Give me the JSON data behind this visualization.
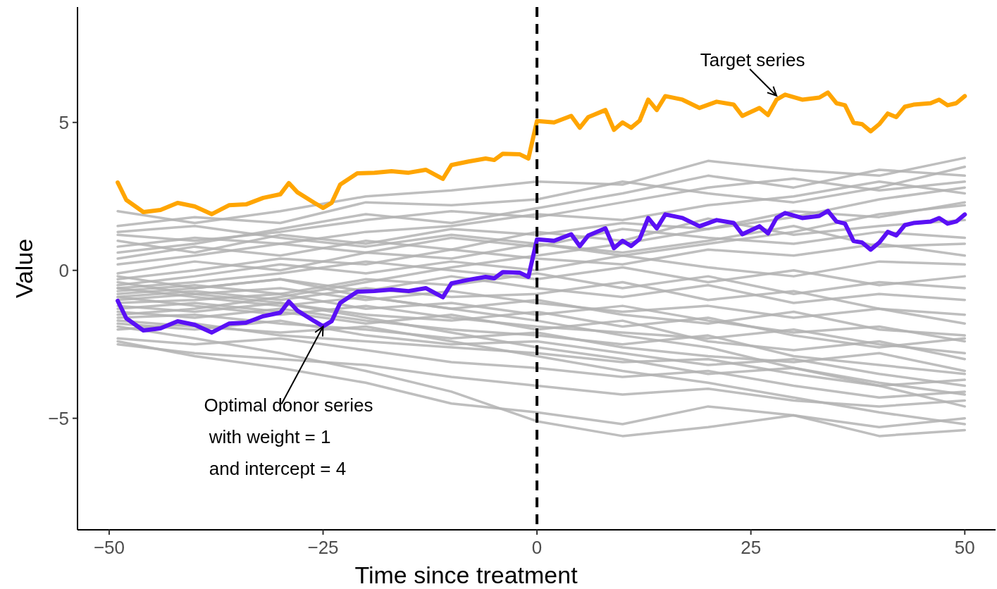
{
  "chart_data": {
    "type": "line",
    "xlabel": "Time since treatment",
    "ylabel": "Value",
    "x": [
      -49,
      -40,
      -30,
      -20,
      -10,
      0,
      10,
      20,
      30,
      40,
      50
    ],
    "xlim": [
      -53.7,
      53.6
    ],
    "ylim": [
      -8.77,
      8.9
    ],
    "xticks": [
      {
        "value": -50,
        "label": "−50"
      },
      {
        "value": -25,
        "label": "−25"
      },
      0,
      25,
      50
    ],
    "yticks": [
      {
        "value": -5,
        "label": "−5"
      },
      0,
      5
    ],
    "ref_lines": [
      {
        "axis": "x",
        "value": 0,
        "color": "#000000",
        "line_style": "dashed"
      }
    ],
    "annotations": [
      {
        "text": "Target series",
        "x": 28,
        "y": 5.9
      },
      {
        "text": "Optimal donor series\n with weight = 1\n and intercept = 4",
        "x": -25,
        "y": -1.9
      }
    ],
    "series": [
      {
        "color": "#b3b3b3",
        "values": [
          2.0,
          1.6,
          2.0,
          2.5,
          2.7,
          3.0,
          2.9,
          3.7,
          3.4,
          3.2,
          3.8
        ]
      },
      {
        "color": "#b3b3b3",
        "values": [
          1.5,
          1.8,
          1.6,
          2.3,
          2.2,
          2.4,
          3.0,
          2.6,
          2.3,
          2.8,
          3.5
        ]
      },
      {
        "color": "#b3b3b3",
        "values": [
          1.2,
          1.0,
          1.3,
          1.7,
          2.0,
          1.8,
          2.3,
          2.8,
          3.1,
          2.7,
          3.0
        ]
      },
      {
        "color": "#b3b3b3",
        "values": [
          0.8,
          1.1,
          0.9,
          1.3,
          1.5,
          1.9,
          1.7,
          2.2,
          2.5,
          3.0,
          2.6
        ]
      },
      {
        "color": "#b3b3b3",
        "values": [
          1.0,
          0.6,
          1.2,
          0.9,
          1.4,
          1.2,
          1.6,
          1.4,
          2.0,
          1.8,
          2.3
        ]
      },
      {
        "color": "#b3b3b3",
        "values": [
          0.4,
          0.8,
          0.5,
          1.0,
          0.7,
          1.3,
          1.0,
          1.75,
          1.2,
          1.5,
          1.7
        ]
      },
      {
        "color": "#b3b3b3",
        "values": [
          0.2,
          0.5,
          0.9,
          0.6,
          1.1,
          0.8,
          1.4,
          1.1,
          0.9,
          1.3,
          1.1
        ]
      },
      {
        "color": "#b3b3b3",
        "values": [
          -0.1,
          0.3,
          0.0,
          0.6,
          0.4,
          0.9,
          0.6,
          1.0,
          1.5,
          0.8,
          0.9
        ]
      },
      {
        "color": "#b3b3b3",
        "values": [
          -0.3,
          0.0,
          0.4,
          0.2,
          0.7,
          0.4,
          0.2,
          0.7,
          0.5,
          0.9,
          0.5
        ]
      },
      {
        "color": "#b3b3b3",
        "values": [
          -0.5,
          -0.2,
          0.2,
          -0.1,
          0.3,
          0.0,
          0.5,
          0.1,
          -0.2,
          0.3,
          0.2
        ]
      },
      {
        "color": "#b3b3b3",
        "values": [
          -0.6,
          -0.4,
          -0.1,
          0.3,
          0.0,
          -0.3,
          0.1,
          -0.4,
          0.0,
          -0.5,
          -0.2
        ]
      },
      {
        "color": "#b3b3b3",
        "values": [
          -0.7,
          -0.5,
          -0.8,
          -0.3,
          -0.5,
          -0.1,
          -0.6,
          -0.2,
          -0.8,
          -0.4,
          -0.6
        ]
      },
      {
        "color": "#b3b3b3",
        "values": [
          -0.8,
          -0.6,
          -0.3,
          -0.7,
          -0.2,
          -0.6,
          -0.9,
          -0.5,
          -1.1,
          -0.8,
          -1.0
        ]
      },
      {
        "color": "#b3b3b3",
        "values": [
          -0.9,
          -0.7,
          -1.0,
          -0.6,
          -0.9,
          -0.8,
          -0.4,
          -1.0,
          -0.7,
          -1.3,
          -1.5
        ]
      },
      {
        "color": "#b3b3b3",
        "values": [
          -1.0,
          -0.8,
          -0.6,
          -1.0,
          -0.7,
          -1.1,
          -1.4,
          -1.2,
          -1.6,
          -1.3,
          -1.8
        ]
      },
      {
        "color": "#b3b3b3",
        "values": [
          -0.6,
          -0.9,
          -1.2,
          -0.9,
          -1.3,
          -1.0,
          -1.5,
          -1.8,
          -1.4,
          -2.0,
          -2.2
        ]
      },
      {
        "color": "#b3b3b3",
        "values": [
          -1.1,
          -1.0,
          -0.8,
          -1.3,
          -1.1,
          -1.5,
          -1.2,
          -1.7,
          -2.1,
          -1.9,
          -2.4
        ]
      },
      {
        "color": "#b3b3b3",
        "values": [
          -1.2,
          -1.4,
          -1.1,
          -1.5,
          -1.7,
          -1.4,
          -1.9,
          -1.6,
          -2.2,
          -2.6,
          -2.3
        ]
      },
      {
        "color": "#b3b3b3",
        "values": [
          -0.9,
          -1.2,
          -1.5,
          -1.2,
          -1.6,
          -1.9,
          -2.1,
          -2.3,
          -2.0,
          -2.5,
          -2.8
        ]
      },
      {
        "color": "#b3b3b3",
        "values": [
          -1.3,
          -1.1,
          -1.4,
          -1.8,
          -1.5,
          -2.0,
          -1.7,
          -2.4,
          -2.7,
          -2.4,
          -3.0
        ]
      },
      {
        "color": "#b3b3b3",
        "values": [
          -1.4,
          -1.6,
          -1.3,
          -1.7,
          -2.0,
          -2.2,
          -2.5,
          -2.2,
          -2.9,
          -3.2,
          -3.5
        ]
      },
      {
        "color": "#b3b3b3",
        "values": [
          -1.6,
          -1.5,
          -1.8,
          -2.0,
          -2.3,
          -2.1,
          -2.6,
          -2.9,
          -3.1,
          -2.8,
          -3.4
        ]
      },
      {
        "color": "#b3b3b3",
        "values": [
          -1.8,
          -2.0,
          -1.7,
          -2.2,
          -2.5,
          -2.4,
          -2.8,
          -3.2,
          -3.0,
          -3.5,
          -3.9
        ]
      },
      {
        "color": "#b3b3b3",
        "values": [
          -2.0,
          -1.8,
          -2.2,
          -2.4,
          -2.6,
          -2.8,
          -3.1,
          -3.0,
          -3.5,
          -3.9,
          -3.7
        ]
      },
      {
        "color": "#b3b3b3",
        "values": [
          -2.3,
          -2.5,
          -2.3,
          -2.7,
          -3.1,
          -3.3,
          -3.6,
          -3.4,
          -3.9,
          -4.3,
          -4.1
        ]
      },
      {
        "color": "#b3b3b3",
        "values": [
          -2.5,
          -2.8,
          -3.0,
          -3.2,
          -3.6,
          -3.9,
          -4.2,
          -4.0,
          -4.4,
          -4.6,
          -4.4
        ]
      },
      {
        "color": "#b3b3b3",
        "values": [
          -2.4,
          -2.9,
          -3.3,
          -3.8,
          -4.5,
          -4.8,
          -5.2,
          -4.6,
          -4.9,
          -5.3,
          -5.0
        ]
      },
      {
        "color": "#b3b3b3",
        "values": [
          -1.9,
          -2.3,
          -2.8,
          -3.4,
          -4.1,
          -5.1,
          -5.6,
          -5.3,
          -4.9,
          -5.6,
          -5.4
        ]
      },
      {
        "color": "#b3b3b3",
        "values": [
          1.3,
          1.5,
          1.1,
          0.8,
          1.2,
          0.9,
          0.5,
          0.9,
          1.3,
          1.9,
          2.2
        ]
      },
      {
        "color": "#b3b3b3",
        "values": [
          0.6,
          0.9,
          1.4,
          1.9,
          1.6,
          2.1,
          2.6,
          3.2,
          2.8,
          3.4,
          3.2
        ]
      },
      {
        "color": "#b3b3b3",
        "values": [
          -0.2,
          -0.6,
          -0.3,
          -0.9,
          -1.3,
          -1.7,
          -2.2,
          -2.6,
          -3.3,
          -3.8,
          -4.2
        ]
      },
      {
        "color": "#b3b3b3",
        "values": [
          -1.5,
          -1.3,
          -0.9,
          -0.4,
          0.1,
          0.5,
          0.9,
          1.4,
          1.8,
          2.4,
          2.8
        ]
      },
      {
        "color": "#b3b3b3",
        "values": [
          -0.4,
          -0.8,
          -1.1,
          -1.6,
          -2.1,
          -2.6,
          -3.0,
          -3.5,
          -3.3,
          -3.9,
          -4.6
        ]
      },
      {
        "color": "#b3b3b3",
        "values": [
          -1.7,
          -1.9,
          -2.1,
          -1.9,
          -2.4,
          -2.9,
          -3.4,
          -3.8,
          -4.3,
          -4.8,
          -5.2
        ]
      },
      {
        "color": "#ffa500",
        "x": [
          -49,
          -48,
          -46,
          -44,
          -42,
          -40,
          -38,
          -36,
          -34,
          -32,
          -30,
          -29,
          -28,
          -26,
          -25,
          -24,
          -23,
          -21,
          -19,
          -17,
          -15,
          -13,
          -11,
          -10,
          -8,
          -6,
          -5,
          -4,
          -2,
          -1,
          0,
          2,
          4,
          5,
          6,
          8,
          9,
          10,
          11,
          12,
          13,
          14,
          15,
          17,
          19,
          21,
          23,
          24,
          26,
          27,
          28,
          29,
          31,
          33,
          34,
          35,
          36,
          37,
          38,
          39,
          40,
          41,
          42,
          43,
          44,
          46,
          47,
          48,
          49,
          50
        ],
        "values": [
          2.97,
          2.38,
          1.97,
          2.04,
          2.28,
          2.16,
          1.9,
          2.2,
          2.23,
          2.45,
          2.57,
          2.95,
          2.64,
          2.28,
          2.11,
          2.28,
          2.9,
          3.28,
          3.3,
          3.35,
          3.3,
          3.4,
          3.09,
          3.56,
          3.68,
          3.78,
          3.73,
          3.94,
          3.92,
          3.78,
          5.05,
          5.0,
          5.22,
          4.82,
          5.18,
          5.42,
          4.75,
          5.0,
          4.82,
          5.06,
          5.77,
          5.42,
          5.89,
          5.77,
          5.49,
          5.7,
          5.6,
          5.22,
          5.49,
          5.25,
          5.77,
          5.94,
          5.77,
          5.84,
          6.01,
          5.65,
          5.58,
          4.99,
          4.94,
          4.7,
          4.94,
          5.3,
          5.18,
          5.53,
          5.6,
          5.65,
          5.77,
          5.58,
          5.65,
          5.89
        ]
      },
      {
        "color": "#5a10f5",
        "x": [
          -49,
          -48,
          -46,
          -44,
          -42,
          -40,
          -38,
          -36,
          -34,
          -32,
          -30,
          -29,
          -28,
          -26,
          -25,
          -24,
          -23,
          -21,
          -19,
          -17,
          -15,
          -13,
          -11,
          -10,
          -8,
          -6,
          -5,
          -4,
          -2,
          -1,
          0,
          2,
          4,
          5,
          6,
          8,
          9,
          10,
          11,
          12,
          13,
          14,
          15,
          17,
          19,
          21,
          23,
          24,
          26,
          27,
          28,
          29,
          31,
          33,
          34,
          35,
          36,
          37,
          38,
          39,
          40,
          41,
          42,
          43,
          44,
          46,
          47,
          48,
          49,
          50
        ],
        "values": [
          -1.03,
          -1.62,
          -2.03,
          -1.96,
          -1.72,
          -1.84,
          -2.1,
          -1.8,
          -1.77,
          -1.55,
          -1.43,
          -1.05,
          -1.36,
          -1.72,
          -1.89,
          -1.72,
          -1.1,
          -0.72,
          -0.7,
          -0.65,
          -0.7,
          -0.6,
          -0.91,
          -0.44,
          -0.32,
          -0.22,
          -0.27,
          -0.06,
          -0.08,
          -0.22,
          1.05,
          1.0,
          1.22,
          0.82,
          1.18,
          1.42,
          0.75,
          1.0,
          0.82,
          1.06,
          1.77,
          1.42,
          1.89,
          1.77,
          1.49,
          1.7,
          1.6,
          1.22,
          1.49,
          1.25,
          1.77,
          1.94,
          1.77,
          1.84,
          2.01,
          1.65,
          1.58,
          0.99,
          0.94,
          0.7,
          0.94,
          1.3,
          1.18,
          1.53,
          1.6,
          1.65,
          1.77,
          1.58,
          1.65,
          1.89
        ]
      }
    ]
  }
}
